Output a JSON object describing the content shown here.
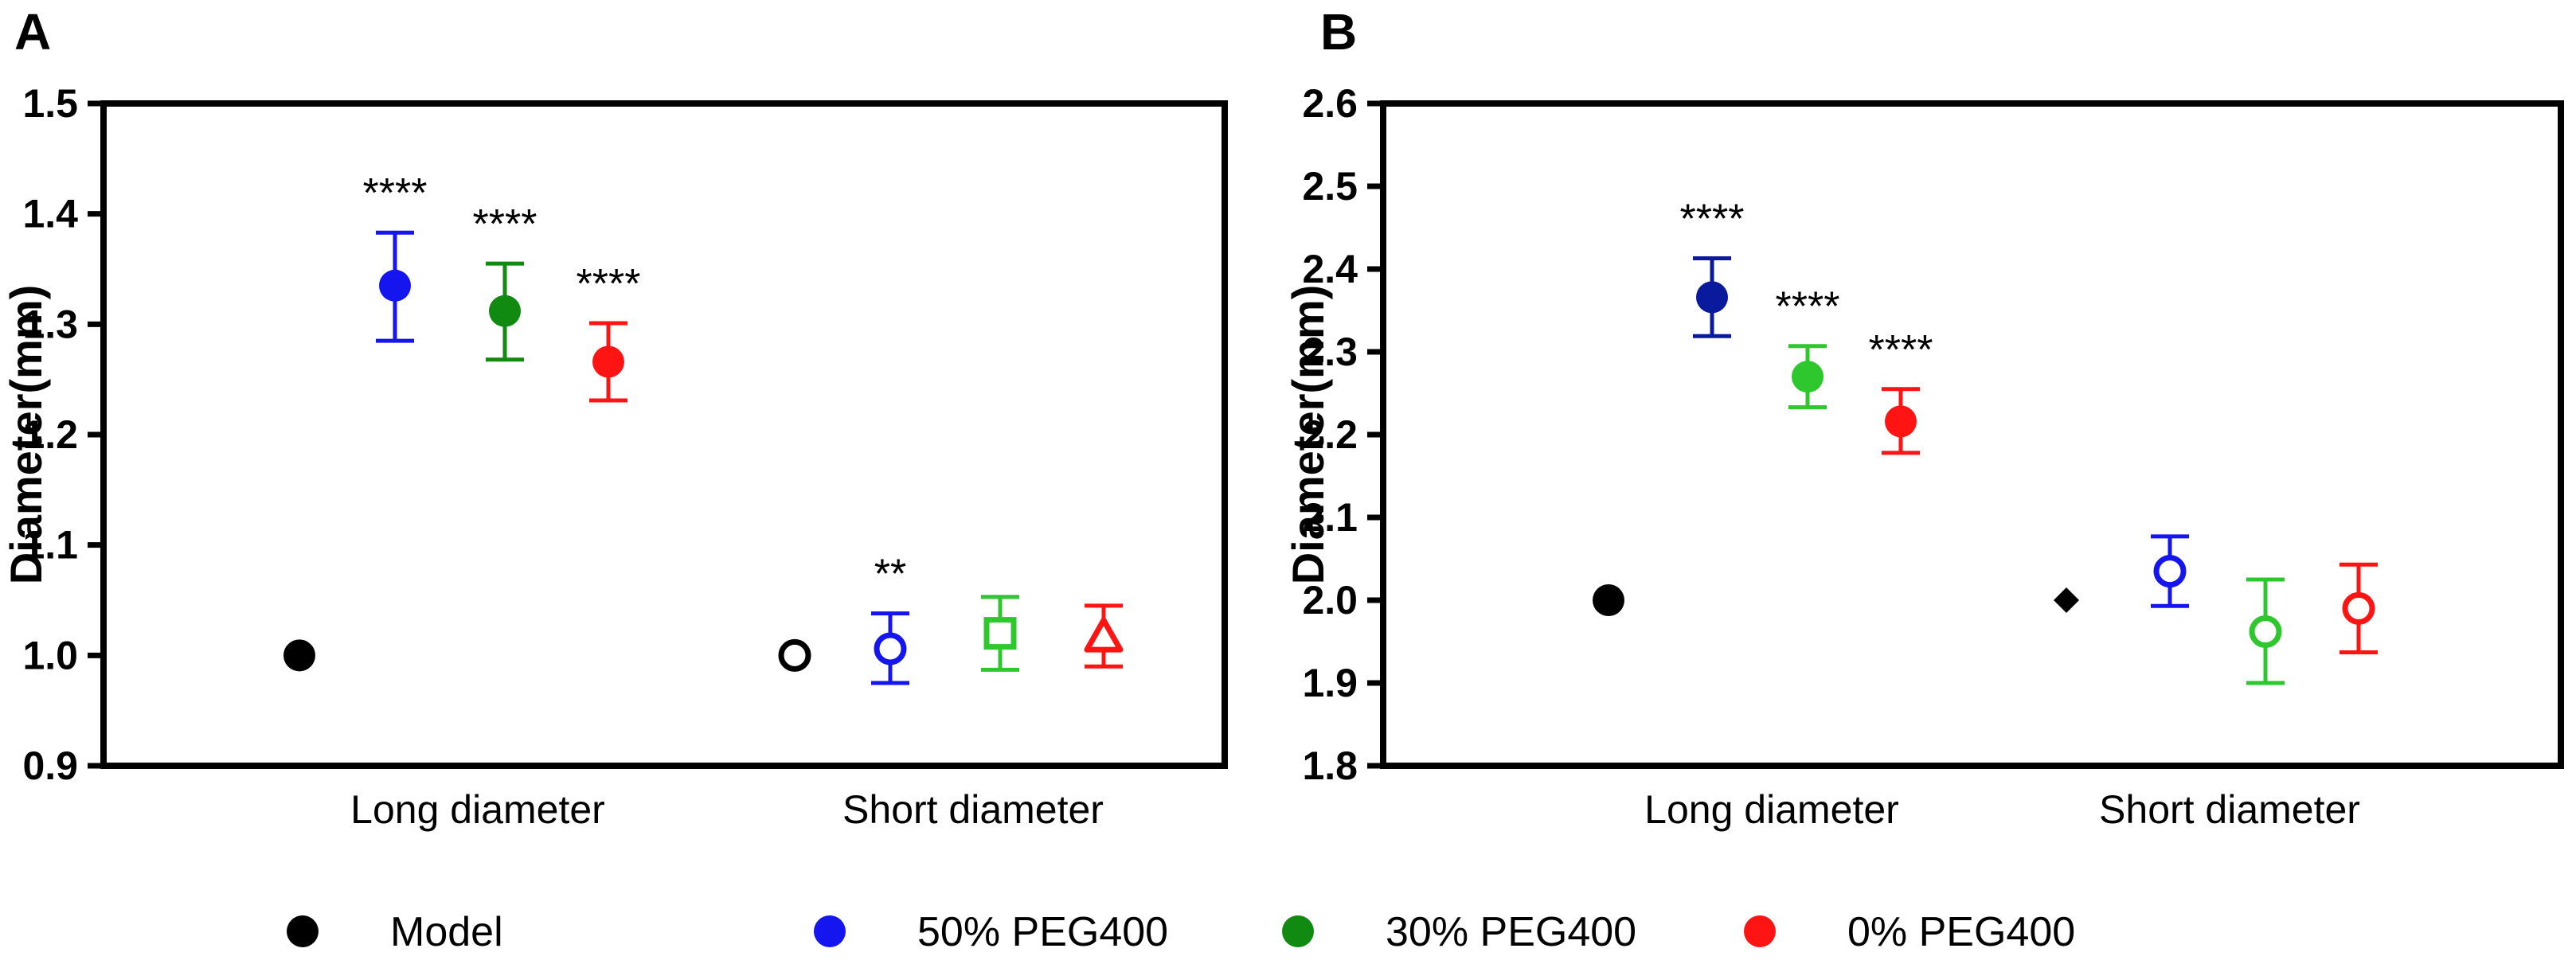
{
  "figure": {
    "legend": [
      {
        "label": "Model",
        "color": "#000000"
      },
      {
        "label": "50% PEG400",
        "color": "#1515f0"
      },
      {
        "label": "30% PEG400",
        "color": "#118a11"
      },
      {
        "label": "0%   PEG400",
        "color": "#ff1414"
      }
    ]
  },
  "chart_data": [
    {
      "type": "scatter",
      "panel": "A",
      "title": "",
      "xlabel": "",
      "ylabel": "Diameter(mm)",
      "ylim": [
        0.9,
        1.5
      ],
      "yticks": [
        "0.9",
        "1.0",
        "1.1",
        "1.2",
        "1.3",
        "1.4",
        "1.5"
      ],
      "categories": [
        "Long diameter",
        "Short diameter"
      ],
      "grid": false,
      "points": [
        {
          "category": "Long diameter",
          "group": "Model",
          "mean": 1.0,
          "low": 1.0,
          "high": 1.0,
          "marker": "circle",
          "filled": true,
          "color": "#000000",
          "sig": ""
        },
        {
          "category": "Long diameter",
          "group": "50% PEG400",
          "mean": 1.335,
          "low": 1.285,
          "high": 1.383,
          "marker": "circle",
          "filled": true,
          "color": "#1515f0",
          "sig": "****"
        },
        {
          "category": "Long diameter",
          "group": "30% PEG400",
          "mean": 1.312,
          "low": 1.268,
          "high": 1.355,
          "marker": "circle",
          "filled": true,
          "color": "#118a11",
          "sig": "****"
        },
        {
          "category": "Long diameter",
          "group": "0% PEG400",
          "mean": 1.266,
          "low": 1.231,
          "high": 1.301,
          "marker": "circle",
          "filled": true,
          "color": "#ff1414",
          "sig": "****"
        },
        {
          "category": "Short diameter",
          "group": "Model",
          "mean": 1.0,
          "low": 1.0,
          "high": 1.0,
          "marker": "circle",
          "filled": false,
          "color": "#000000",
          "sig": ""
        },
        {
          "category": "Short diameter",
          "group": "50% PEG400",
          "mean": 1.006,
          "low": 0.975,
          "high": 1.038,
          "marker": "circle",
          "filled": false,
          "color": "#1515f0",
          "sig": "**"
        },
        {
          "category": "Short diameter",
          "group": "30% PEG400",
          "mean": 1.02,
          "low": 0.987,
          "high": 1.053,
          "marker": "square",
          "filled": false,
          "color": "#2ec82e",
          "sig": ""
        },
        {
          "category": "Short diameter",
          "group": "0% PEG400",
          "mean": 1.016,
          "low": 0.99,
          "high": 1.045,
          "marker": "triangle",
          "filled": false,
          "color": "#ff1414",
          "sig": ""
        }
      ]
    },
    {
      "type": "scatter",
      "panel": "B",
      "title": "",
      "xlabel": "",
      "ylabel": "Diameter(mm)",
      "ylim": [
        1.8,
        2.6
      ],
      "yticks": [
        "1.8",
        "1.9",
        "2.0",
        "2.1",
        "2.2",
        "2.3",
        "2.4",
        "2.5",
        "2.6"
      ],
      "categories": [
        "Long diameter",
        "Short diameter"
      ],
      "grid": false,
      "points": [
        {
          "category": "Long diameter",
          "group": "Model",
          "mean": 2.0,
          "low": 2.0,
          "high": 2.0,
          "marker": "circle",
          "filled": true,
          "color": "#000000",
          "sig": ""
        },
        {
          "category": "Long diameter",
          "group": "50% PEG400",
          "mean": 2.366,
          "low": 2.319,
          "high": 2.413,
          "marker": "circle",
          "filled": true,
          "color": "#0a1a9c",
          "sig": "****"
        },
        {
          "category": "Long diameter",
          "group": "30% PEG400",
          "mean": 2.27,
          "low": 2.233,
          "high": 2.307,
          "marker": "circle",
          "filled": true,
          "color": "#2ec82e",
          "sig": "****"
        },
        {
          "category": "Long diameter",
          "group": "0% PEG400",
          "mean": 2.216,
          "low": 2.178,
          "high": 2.255,
          "marker": "circle",
          "filled": true,
          "color": "#ff1414",
          "sig": "****"
        },
        {
          "category": "Short diameter",
          "group": "Model",
          "mean": 2.0,
          "low": 2.0,
          "high": 2.0,
          "marker": "diamond",
          "filled": true,
          "color": "#000000",
          "sig": ""
        },
        {
          "category": "Short diameter",
          "group": "50% PEG400",
          "mean": 2.035,
          "low": 1.993,
          "high": 2.077,
          "marker": "circle",
          "filled": false,
          "color": "#1515f0",
          "sig": ""
        },
        {
          "category": "Short diameter",
          "group": "30% PEG400",
          "mean": 1.962,
          "low": 1.9,
          "high": 2.025,
          "marker": "circle",
          "filled": false,
          "color": "#2ec82e",
          "sig": ""
        },
        {
          "category": "Short diameter",
          "group": "0% PEG400",
          "mean": 1.99,
          "low": 1.937,
          "high": 2.043,
          "marker": "circle",
          "filled": false,
          "color": "#ff1414",
          "sig": ""
        }
      ]
    }
  ]
}
